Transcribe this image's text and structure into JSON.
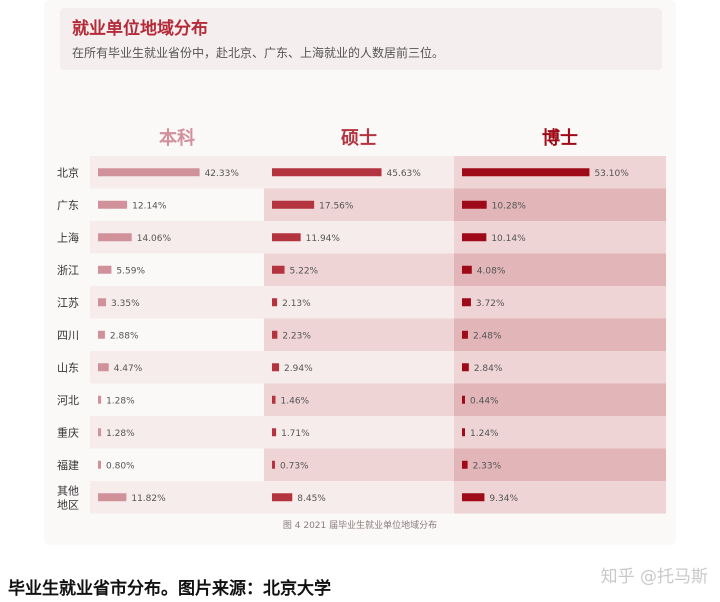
{
  "header": {
    "title": "就业单位地域分布",
    "subtitle": "在所有毕业生就业省份中，赴北京、广东、上海就业的人数居前三位。"
  },
  "figure_caption": "图 4   2021 届毕业生就业单位地域分布",
  "bottom_caption": "毕业生就业省市分布。图片来源：北京大学",
  "watermark": "知乎 @托马斯",
  "colors": {
    "bachelor_bar": "#d0919b",
    "master_bar": "#b3333f",
    "doctor_bar": "#9e0a17",
    "title_red": "#b52a38",
    "band_light": "#f7ecec",
    "band_mid": "#eed4d4",
    "band_dark": "#e2b5b8"
  },
  "chart_data": {
    "type": "bar",
    "orientation": "horizontal",
    "title": "",
    "categories": [
      "北京",
      "广东",
      "上海",
      "浙江",
      "江苏",
      "四川",
      "山东",
      "河北",
      "重庆",
      "福建",
      "其他地区"
    ],
    "category_labels": [
      [
        "北京"
      ],
      [
        "广东"
      ],
      [
        "上海"
      ],
      [
        "浙江"
      ],
      [
        "江苏"
      ],
      [
        "四川"
      ],
      [
        "山东"
      ],
      [
        "河北"
      ],
      [
        "重庆"
      ],
      [
        "福建"
      ],
      [
        "其他",
        "地区"
      ]
    ],
    "series": [
      {
        "name": "本科",
        "values": [
          42.33,
          12.14,
          14.06,
          5.59,
          3.35,
          2.88,
          4.47,
          1.28,
          1.28,
          0.8,
          11.82
        ],
        "labels": [
          "42.33%",
          "12.14%",
          "14.06%",
          "5.59%",
          "3.35%",
          "2.88%",
          "4.47%",
          "1.28%",
          "1.28%",
          "0.80%",
          "11.82%"
        ]
      },
      {
        "name": "硕士",
        "values": [
          45.63,
          17.56,
          11.94,
          5.22,
          2.13,
          2.23,
          2.94,
          1.46,
          1.71,
          0.73,
          8.45
        ],
        "labels": [
          "45.63%",
          "17.56%",
          "11.94%",
          "5.22%",
          "2.13%",
          "2.23%",
          "2.94%",
          "1.46%",
          "1.71%",
          "0.73%",
          "8.45%"
        ]
      },
      {
        "name": "博士",
        "values": [
          53.1,
          10.28,
          10.14,
          4.08,
          3.72,
          2.48,
          2.84,
          0.44,
          1.24,
          2.33,
          9.34
        ],
        "labels": [
          "53.10%",
          "10.28%",
          "10.14%",
          "4.08%",
          "3.72%",
          "2.48%",
          "2.84%",
          "0.44%",
          "1.24%",
          "2.33%",
          "9.34%"
        ]
      }
    ],
    "grid": false,
    "legend": "top"
  }
}
